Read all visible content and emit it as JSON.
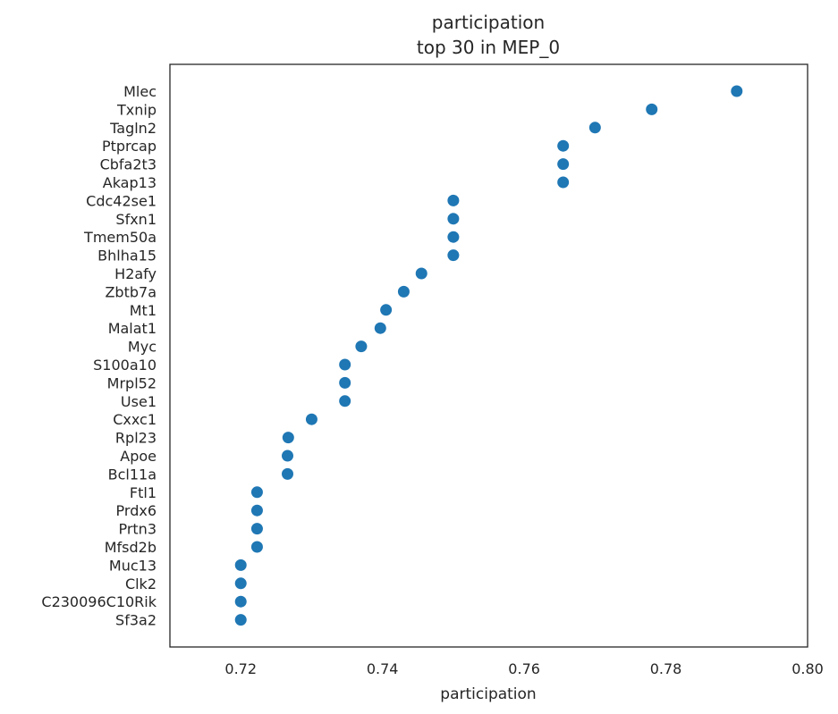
{
  "chart_data": {
    "type": "scatter",
    "title_line1": "participation",
    "title_line2": "top 30 in MEP_0",
    "xlabel": "participation",
    "ylabel": "",
    "xlim": [
      0.71,
      0.8
    ],
    "xticks": [
      0.72,
      0.74,
      0.76,
      0.78,
      0.8
    ],
    "xtick_labels": [
      "0.72",
      "0.74",
      "0.76",
      "0.78",
      "0.80"
    ],
    "grid": false,
    "legend": "none",
    "marker_color": "#1f77b4",
    "points": [
      {
        "label": "Mlec",
        "value": 0.79
      },
      {
        "label": "Txnip",
        "value": 0.778
      },
      {
        "label": "Tagln2",
        "value": 0.77
      },
      {
        "label": "Ptprcap",
        "value": 0.7655
      },
      {
        "label": "Cbfa2t3",
        "value": 0.7655
      },
      {
        "label": "Akap13",
        "value": 0.7655
      },
      {
        "label": "Cdc42se1",
        "value": 0.75
      },
      {
        "label": "Sfxn1",
        "value": 0.75
      },
      {
        "label": "Tmem50a",
        "value": 0.75
      },
      {
        "label": "Bhlha15",
        "value": 0.75
      },
      {
        "label": "H2afy",
        "value": 0.7455
      },
      {
        "label": "Zbtb7a",
        "value": 0.743
      },
      {
        "label": "Mt1",
        "value": 0.7405
      },
      {
        "label": "Malat1",
        "value": 0.7397
      },
      {
        "label": "Myc",
        "value": 0.737
      },
      {
        "label": "S100a10",
        "value": 0.7347
      },
      {
        "label": "Mrpl52",
        "value": 0.7347
      },
      {
        "label": "Use1",
        "value": 0.7347
      },
      {
        "label": "Cxxc1",
        "value": 0.73
      },
      {
        "label": "Rpl23",
        "value": 0.7267
      },
      {
        "label": "Apoe",
        "value": 0.7266
      },
      {
        "label": "Bcl11a",
        "value": 0.7266
      },
      {
        "label": "Ftl1",
        "value": 0.7223
      },
      {
        "label": "Prdx6",
        "value": 0.7223
      },
      {
        "label": "Prtn3",
        "value": 0.7223
      },
      {
        "label": "Mfsd2b",
        "value": 0.7223
      },
      {
        "label": "Muc13",
        "value": 0.72
      },
      {
        "label": "Clk2",
        "value": 0.72
      },
      {
        "label": "C230096C10Rik",
        "value": 0.72
      },
      {
        "label": "Sf3a2",
        "value": 0.72
      }
    ]
  }
}
